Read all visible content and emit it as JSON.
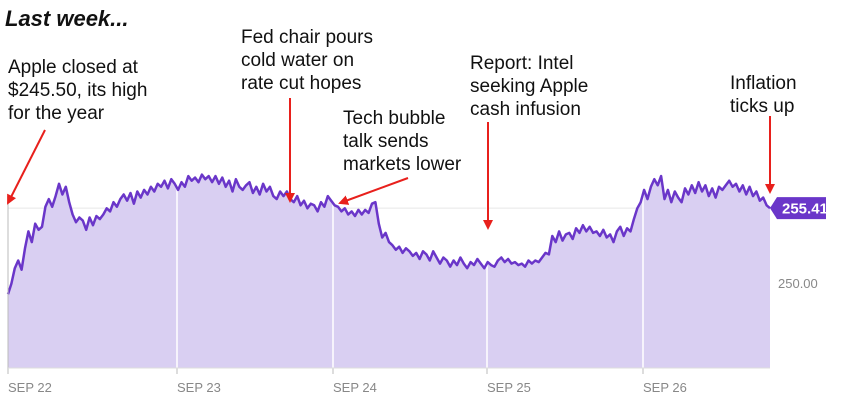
{
  "heading": "Last week...",
  "annotations": [
    {
      "id": "a1",
      "text": "Apple closed at\n$245.50, its high\nfor the year",
      "arrow_color": "#e8201c"
    },
    {
      "id": "a2",
      "text": "Fed chair pours\ncold water on\nrate cut hopes",
      "arrow_color": "#e8201c"
    },
    {
      "id": "a3",
      "text": "Tech bubble\ntalk sends\nmarkets lower",
      "arrow_color": "#e8201c"
    },
    {
      "id": "a4",
      "text": "Report: Intel\nseeking Apple\ncash infusion",
      "arrow_color": "#e8201c"
    },
    {
      "id": "a5",
      "text": "Inflation\nticks up",
      "arrow_color": "#e8201c"
    }
  ],
  "colors": {
    "line": "#6a36c9",
    "area": "#d9cff2",
    "badge": "#6a36c9",
    "grid": "#e6e6e6",
    "tick": "#888888"
  },
  "chart_data": {
    "type": "area",
    "title": "",
    "xlabel": "",
    "ylabel": "",
    "grid": true,
    "x_ticks": [
      "SEP 22",
      "SEP 23",
      "SEP 24",
      "SEP 25",
      "SEP 26"
    ],
    "y_ticks": [
      250.0
    ],
    "y_tick_labels": [
      "250.00"
    ],
    "ylim": [
      245.0,
      259.2
    ],
    "current_value": 255.41,
    "current_value_label": "255.41",
    "series": [
      {
        "values": [
          249.8,
          250.5,
          251.5,
          252.0,
          251.4,
          252.8,
          253.9,
          253.2,
          254.4,
          254.0,
          254.2,
          255.5,
          256.0,
          255.5,
          256.2,
          257.0,
          256.3,
          256.8,
          255.8,
          255.0,
          254.5,
          254.8,
          254.6,
          254.0,
          254.8,
          254.3,
          254.9,
          254.7,
          255.0,
          255.4,
          255.2,
          255.8,
          255.5,
          256.0,
          256.3,
          255.9,
          256.4,
          255.7,
          256.5,
          256.1,
          256.6,
          256.3,
          256.8,
          256.5,
          257.0,
          256.8,
          257.2,
          256.7,
          257.3,
          257.0,
          256.6,
          257.1,
          256.8,
          257.5,
          257.2,
          257.4,
          257.1,
          257.6,
          257.3,
          257.5,
          257.1,
          257.5,
          257.0,
          257.4,
          256.8,
          257.2,
          256.5,
          257.3,
          256.8,
          256.6,
          256.9,
          257.1,
          256.4,
          256.8,
          256.3,
          257.0,
          256.5,
          256.8,
          256.2,
          256.0,
          256.5,
          256.2,
          256.5,
          256.0,
          255.8,
          256.2,
          255.6,
          255.9,
          255.4,
          255.7,
          255.6,
          255.2,
          255.8,
          255.5,
          256.2,
          255.9,
          255.6,
          255.5,
          255.2,
          255.4,
          255.0,
          255.2,
          254.9,
          255.3,
          255.0,
          255.3,
          255.1,
          255.7,
          255.8,
          254.4,
          253.5,
          253.8,
          253.2,
          253.0,
          252.7,
          252.9,
          252.5,
          252.8,
          252.6,
          252.3,
          252.5,
          252.1,
          252.6,
          252.4,
          252.0,
          252.6,
          252.2,
          251.8,
          252.2,
          252.0,
          251.6,
          252.0,
          251.7,
          252.2,
          251.8,
          251.5,
          251.9,
          251.7,
          252.1,
          251.8,
          251.5,
          251.9,
          251.7,
          251.6,
          252.0,
          252.2,
          251.9,
          252.1,
          251.8,
          251.9,
          251.7,
          251.8,
          251.6,
          252.0,
          251.8,
          252.0,
          251.9,
          252.2,
          252.5,
          252.4,
          253.6,
          253.2,
          253.9,
          253.3,
          253.7,
          253.8,
          253.4,
          254.1,
          253.8,
          254.3,
          253.9,
          254.2,
          253.8,
          253.9,
          253.6,
          254.0,
          253.5,
          253.7,
          253.2,
          253.9,
          254.2,
          253.6,
          254.1,
          253.9,
          254.7,
          255.4,
          255.8,
          256.6,
          256.0,
          256.8,
          257.3,
          256.9,
          257.5,
          256.0,
          256.6,
          255.8,
          256.5,
          256.1,
          255.8,
          256.7,
          256.3,
          256.9,
          256.4,
          257.1,
          256.5,
          256.9,
          256.2,
          256.7,
          256.1,
          256.8,
          256.6,
          256.9,
          257.2,
          256.8,
          257.0,
          256.5,
          256.9,
          256.3,
          256.8,
          256.2,
          256.5,
          255.9,
          256.1,
          255.6,
          255.41
        ]
      }
    ]
  }
}
